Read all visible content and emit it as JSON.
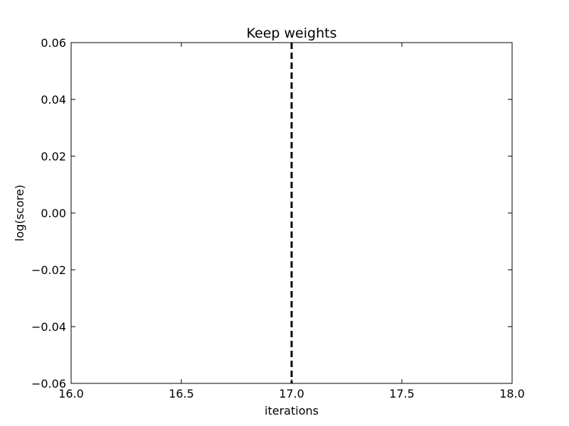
{
  "chart_data": {
    "type": "line",
    "title": "Keep weights",
    "xlabel": "iterations",
    "ylabel": "log(score)",
    "xlim": [
      16.0,
      18.0
    ],
    "ylim": [
      -0.06,
      0.06
    ],
    "x_ticks": [
      16.0,
      16.5,
      17.0,
      17.5,
      18.0
    ],
    "x_tick_labels": [
      "16.0",
      "16.5",
      "17.0",
      "17.5",
      "18.0"
    ],
    "y_ticks": [
      0.06,
      0.04,
      0.02,
      0.0,
      -0.02,
      -0.04,
      -0.06
    ],
    "y_tick_labels": [
      "0.06",
      "0.04",
      "0.02",
      "0.00",
      "−0.02",
      "−0.04",
      "−0.06"
    ],
    "grid": false,
    "vlines": [
      {
        "x": 17.0,
        "style": "dashed",
        "color": "#000000"
      }
    ]
  }
}
